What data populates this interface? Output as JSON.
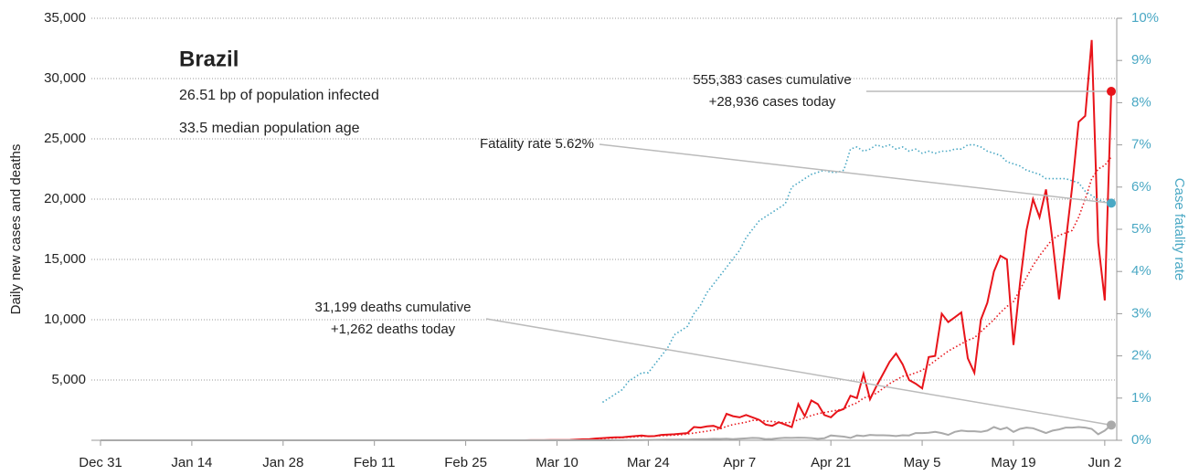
{
  "chart_data": {
    "type": "line",
    "title": "Brazil",
    "subtitle": [
      "26.51 bp of population infected",
      "33.5 median population age"
    ],
    "ylabel": "Daily new cases and deaths",
    "y2label": "Case fatality rate",
    "annotations": {
      "cases": [
        "555,383 cases cumulative",
        "+28,936 cases today"
      ],
      "fatality": [
        "Fatality rate 5.62%"
      ],
      "deaths": [
        "31,199 deaths cumulative",
        "+1,262 deaths today"
      ]
    },
    "xlim": [
      0,
      155
    ],
    "xticks": [
      {
        "value": 0,
        "label": "Dec 31"
      },
      {
        "value": 14,
        "label": "Jan 14"
      },
      {
        "value": 28,
        "label": "Jan 28"
      },
      {
        "value": 42,
        "label": "Feb 11"
      },
      {
        "value": 56,
        "label": "Feb 25"
      },
      {
        "value": 70,
        "label": "Mar 10"
      },
      {
        "value": 84,
        "label": "Mar 24"
      },
      {
        "value": 98,
        "label": "Apr 7"
      },
      {
        "value": 112,
        "label": "Apr 21"
      },
      {
        "value": 126,
        "label": "May 5"
      },
      {
        "value": 140,
        "label": "May 19"
      },
      {
        "value": 154,
        "label": "Jun 2"
      }
    ],
    "ylim": [
      0,
      35000
    ],
    "yticks": [
      {
        "value": 5000,
        "label": "5,000"
      },
      {
        "value": 10000,
        "label": "10,000"
      },
      {
        "value": 15000,
        "label": "15,000"
      },
      {
        "value": 20000,
        "label": "20,000"
      },
      {
        "value": 25000,
        "label": "25,000"
      },
      {
        "value": 30000,
        "label": "30,000"
      },
      {
        "value": 35000,
        "label": "35,000"
      }
    ],
    "y2lim": [
      0,
      10
    ],
    "y2ticks": [
      {
        "value": 0,
        "label": "0%"
      },
      {
        "value": 1,
        "label": "1%"
      },
      {
        "value": 2,
        "label": "2%"
      },
      {
        "value": 3,
        "label": "3%"
      },
      {
        "value": 4,
        "label": "4%"
      },
      {
        "value": 5,
        "label": "5%"
      },
      {
        "value": 6,
        "label": "6%"
      },
      {
        "value": 7,
        "label": "7%"
      },
      {
        "value": 8,
        "label": "8%"
      },
      {
        "value": 9,
        "label": "9%"
      },
      {
        "value": 10,
        "label": "10%"
      }
    ],
    "grid": true,
    "x": [
      0,
      1,
      2,
      3,
      4,
      5,
      6,
      7,
      8,
      9,
      10,
      11,
      12,
      13,
      14,
      15,
      16,
      17,
      18,
      19,
      20,
      21,
      22,
      23,
      24,
      25,
      26,
      27,
      28,
      29,
      30,
      31,
      32,
      33,
      34,
      35,
      36,
      37,
      38,
      39,
      40,
      41,
      42,
      43,
      44,
      45,
      46,
      47,
      48,
      49,
      50,
      51,
      52,
      53,
      54,
      55,
      56,
      57,
      58,
      59,
      60,
      61,
      62,
      63,
      64,
      65,
      66,
      67,
      68,
      69,
      70,
      71,
      72,
      73,
      74,
      75,
      76,
      77,
      78,
      79,
      80,
      81,
      82,
      83,
      84,
      85,
      86,
      87,
      88,
      89,
      90,
      91,
      92,
      93,
      94,
      95,
      96,
      97,
      98,
      99,
      100,
      101,
      102,
      103,
      104,
      105,
      106,
      107,
      108,
      109,
      110,
      111,
      112,
      113,
      114,
      115,
      116,
      117,
      118,
      119,
      120,
      121,
      122,
      123,
      124,
      125,
      126,
      127,
      128,
      129,
      130,
      131,
      132,
      133,
      134,
      135,
      136,
      137,
      138,
      139,
      140,
      141,
      142,
      143,
      144,
      145,
      146,
      147,
      148,
      149,
      150,
      151,
      152,
      153,
      154,
      155
    ],
    "series": [
      {
        "name": "cases",
        "color": "#e8141a",
        "style": "solid",
        "values": [
          0,
          0,
          0,
          0,
          0,
          0,
          0,
          0,
          0,
          0,
          0,
          0,
          0,
          0,
          0,
          0,
          0,
          0,
          0,
          0,
          0,
          0,
          0,
          0,
          0,
          0,
          0,
          0,
          0,
          0,
          0,
          0,
          0,
          0,
          0,
          0,
          0,
          0,
          0,
          0,
          0,
          0,
          0,
          0,
          0,
          0,
          0,
          0,
          0,
          0,
          0,
          0,
          0,
          0,
          0,
          0,
          0,
          1,
          0,
          0,
          1,
          0,
          1,
          0,
          0,
          2,
          5,
          6,
          10,
          12,
          20,
          25,
          30,
          60,
          80,
          100,
          150,
          180,
          220,
          250,
          250,
          300,
          350,
          400,
          330,
          350,
          450,
          480,
          500,
          550,
          600,
          1100,
          1050,
          1150,
          1200,
          1000,
          2200,
          2000,
          1900,
          2100,
          1900,
          1700,
          1300,
          1200,
          1500,
          1300,
          1100,
          3000,
          2000,
          3300,
          3000,
          2100,
          1900,
          2400,
          2600,
          3700,
          3500,
          5500,
          3400,
          4500,
          5500,
          6500,
          7200,
          6300,
          5000,
          4700,
          4300,
          6900,
          7000,
          10500,
          9800,
          10200,
          10600,
          6800,
          5600,
          10000,
          11400,
          14000,
          15300,
          15000,
          7900,
          13000,
          17400,
          20000,
          18500,
          20800,
          16500,
          11700,
          16400,
          21000,
          26400,
          26900,
          33200,
          16400,
          11600,
          28936
        ]
      },
      {
        "name": "cases average",
        "color": "#e8141a",
        "style": "dotted",
        "values": [
          null,
          null,
          null,
          null,
          null,
          null,
          null,
          null,
          null,
          null,
          null,
          null,
          null,
          null,
          null,
          null,
          null,
          null,
          null,
          null,
          null,
          null,
          null,
          null,
          null,
          null,
          null,
          null,
          null,
          null,
          null,
          null,
          null,
          null,
          null,
          null,
          null,
          null,
          null,
          null,
          null,
          null,
          null,
          null,
          null,
          null,
          null,
          null,
          null,
          null,
          null,
          null,
          null,
          null,
          null,
          null,
          null,
          null,
          null,
          null,
          null,
          null,
          null,
          null,
          null,
          null,
          null,
          null,
          null,
          null,
          null,
          null,
          null,
          null,
          null,
          80,
          110,
          140,
          170,
          200,
          230,
          260,
          290,
          320,
          340,
          360,
          380,
          400,
          430,
          460,
          520,
          600,
          680,
          760,
          850,
          950,
          1150,
          1300,
          1400,
          1500,
          1650,
          1650,
          1600,
          1550,
          1500,
          1450,
          1500,
          1700,
          1850,
          2050,
          2200,
          2300,
          2400,
          2500,
          2600,
          2900,
          3100,
          3500,
          3700,
          3900,
          4300,
          4700,
          5000,
          5300,
          5400,
          5600,
          5800,
          6200,
          6600,
          7000,
          7400,
          7700,
          8000,
          8300,
          8500,
          9000,
          9500,
          10000,
          10600,
          11100,
          11500,
          12500,
          13500,
          14500,
          15300,
          16000,
          16700,
          17000,
          17200,
          17400,
          18500,
          20000,
          21700,
          22500,
          22800,
          23500
        ]
      },
      {
        "name": "deaths",
        "color": "#aaaaaa",
        "style": "solid",
        "values": [
          0,
          0,
          0,
          0,
          0,
          0,
          0,
          0,
          0,
          0,
          0,
          0,
          0,
          0,
          0,
          0,
          0,
          0,
          0,
          0,
          0,
          0,
          0,
          0,
          0,
          0,
          0,
          0,
          0,
          0,
          0,
          0,
          0,
          0,
          0,
          0,
          0,
          0,
          0,
          0,
          0,
          0,
          0,
          0,
          0,
          0,
          0,
          0,
          0,
          0,
          0,
          0,
          0,
          0,
          0,
          0,
          0,
          0,
          0,
          0,
          0,
          0,
          0,
          0,
          0,
          0,
          0,
          0,
          0,
          0,
          0,
          0,
          0,
          0,
          0,
          0,
          0,
          1,
          2,
          5,
          10,
          15,
          20,
          25,
          30,
          40,
          45,
          50,
          60,
          70,
          60,
          80,
          90,
          100,
          120,
          110,
          140,
          100,
          130,
          160,
          200,
          180,
          100,
          110,
          170,
          210,
          200,
          220,
          210,
          180,
          120,
          170,
          400,
          350,
          300,
          200,
          400,
          350,
          450,
          420,
          420,
          400,
          350,
          420,
          400,
          600,
          600,
          620,
          700,
          600,
          450,
          700,
          800,
          750,
          750,
          700,
          800,
          1100,
          900,
          1050,
          700,
          950,
          1050,
          1000,
          800,
          600,
          800,
          900,
          1050,
          1050,
          1100,
          1050,
          950,
          500,
          800,
          1262
        ]
      },
      {
        "name": "fatality rate",
        "color": "#4aa8c4",
        "style": "dotted",
        "axis": "y2",
        "values": [
          null,
          null,
          null,
          null,
          null,
          null,
          null,
          null,
          null,
          null,
          null,
          null,
          null,
          null,
          null,
          null,
          null,
          null,
          null,
          null,
          null,
          null,
          null,
          null,
          null,
          null,
          null,
          null,
          null,
          null,
          null,
          null,
          null,
          null,
          null,
          null,
          null,
          null,
          null,
          null,
          null,
          null,
          null,
          null,
          null,
          null,
          null,
          null,
          null,
          null,
          null,
          null,
          null,
          null,
          null,
          null,
          null,
          null,
          null,
          null,
          null,
          null,
          null,
          null,
          null,
          null,
          null,
          null,
          null,
          null,
          null,
          null,
          null,
          null,
          null,
          null,
          null,
          0.9,
          1.0,
          1.1,
          1.2,
          1.4,
          1.5,
          1.6,
          1.6,
          1.8,
          2.0,
          2.2,
          2.5,
          2.6,
          2.7,
          3.0,
          3.2,
          3.5,
          3.7,
          3.9,
          4.1,
          4.3,
          4.5,
          4.8,
          5.0,
          5.2,
          5.3,
          5.4,
          5.5,
          5.6,
          6.0,
          6.1,
          6.2,
          6.3,
          6.35,
          6.4,
          6.35,
          6.35,
          6.4,
          6.9,
          6.95,
          6.85,
          6.9,
          7.0,
          6.95,
          7.0,
          6.9,
          6.95,
          6.85,
          6.9,
          6.8,
          6.85,
          6.8,
          6.85,
          6.85,
          6.9,
          6.9,
          7.0,
          7.0,
          6.95,
          6.85,
          6.8,
          6.75,
          6.6,
          6.55,
          6.5,
          6.4,
          6.35,
          6.3,
          6.2,
          6.2,
          6.2,
          6.2,
          6.15,
          6.1,
          5.9,
          5.8,
          5.7,
          5.65,
          5.62
        ]
      }
    ]
  }
}
